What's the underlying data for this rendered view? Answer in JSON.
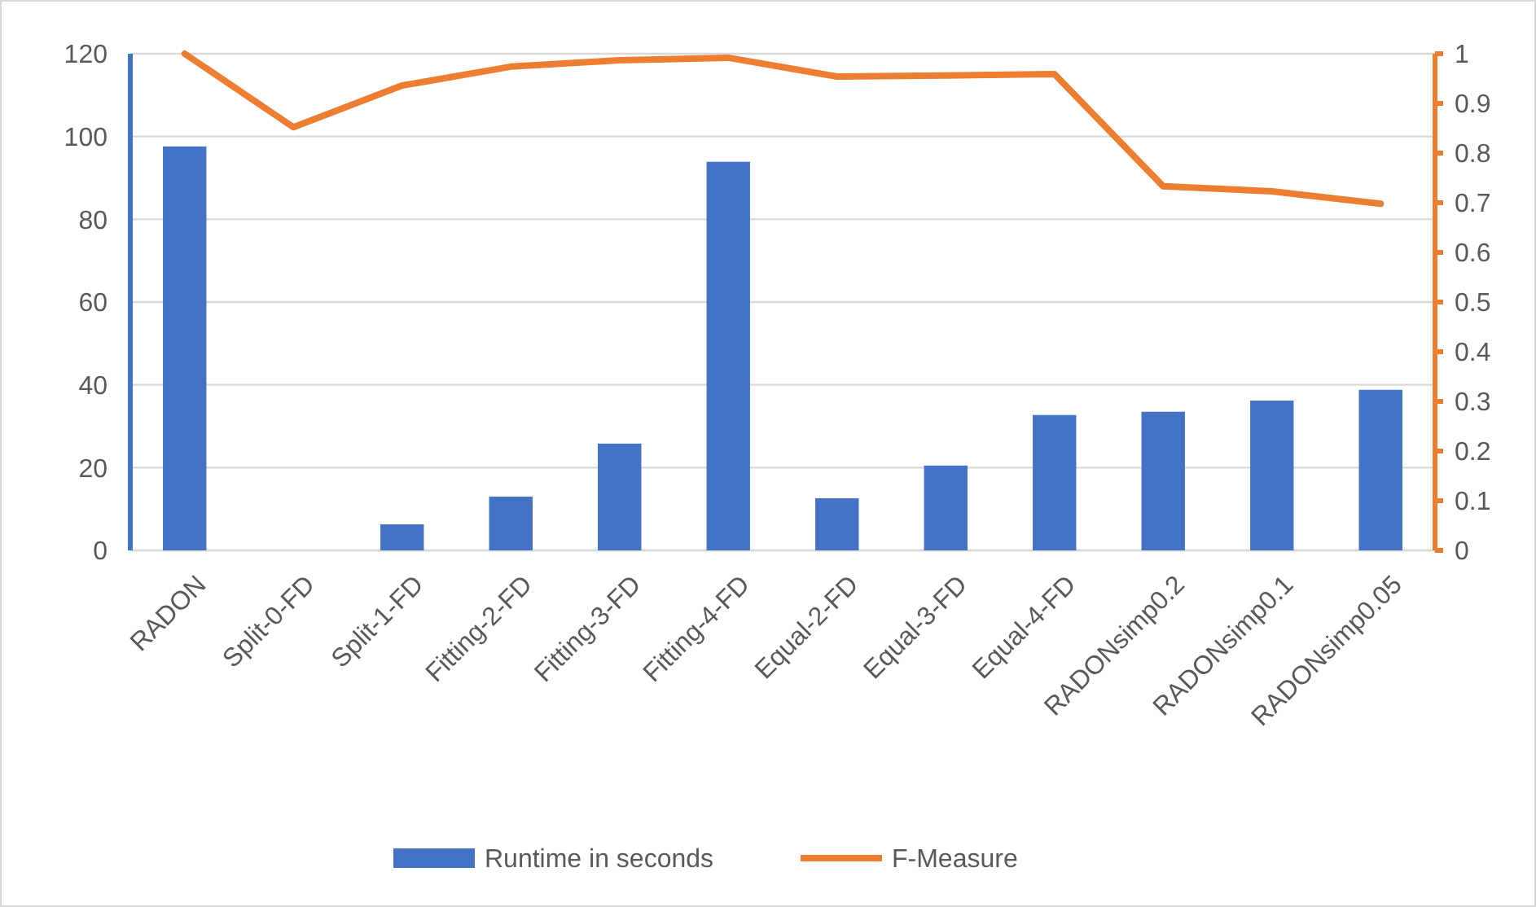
{
  "chart_data": {
    "type": "bar",
    "categories": [
      "RADON",
      "Split-0-FD",
      "Split-1-FD",
      "Fitting-2-FD",
      "Fitting-3-FD",
      "Fitting-4-FD",
      "Equal-2-FD",
      "Equal-3-FD",
      "Equal-4-FD",
      "RADONsimp0.2",
      "RADONsimp0.1",
      "RADONsimp0.05"
    ],
    "series": [
      {
        "name": "Runtime in seconds",
        "color": "#4472c4",
        "values": [
          97.6,
          0,
          6.3,
          13,
          25.8,
          93.9,
          12.6,
          20.5,
          32.7,
          33.5,
          36.2,
          38.8
        ]
      },
      {
        "name": "F-Measure",
        "type": "line",
        "axis": "y2",
        "color": "#ed7d31",
        "values": [
          1.0,
          0.852,
          0.936,
          0.974,
          0.987,
          0.992,
          0.954,
          0.956,
          0.959,
          0.733,
          0.723,
          0.698
        ]
      }
    ],
    "ylim": [
      0,
      120
    ],
    "yticks": [
      0,
      20,
      40,
      60,
      80,
      100,
      120
    ],
    "y2lim": [
      0,
      1
    ],
    "y2ticks": [
      0,
      0.1,
      0.2,
      0.3,
      0.4,
      0.5,
      0.6,
      0.7,
      0.8,
      0.9,
      1
    ],
    "grid": "y",
    "legend": "bottom",
    "marker": "none",
    "line_style": "solid"
  }
}
